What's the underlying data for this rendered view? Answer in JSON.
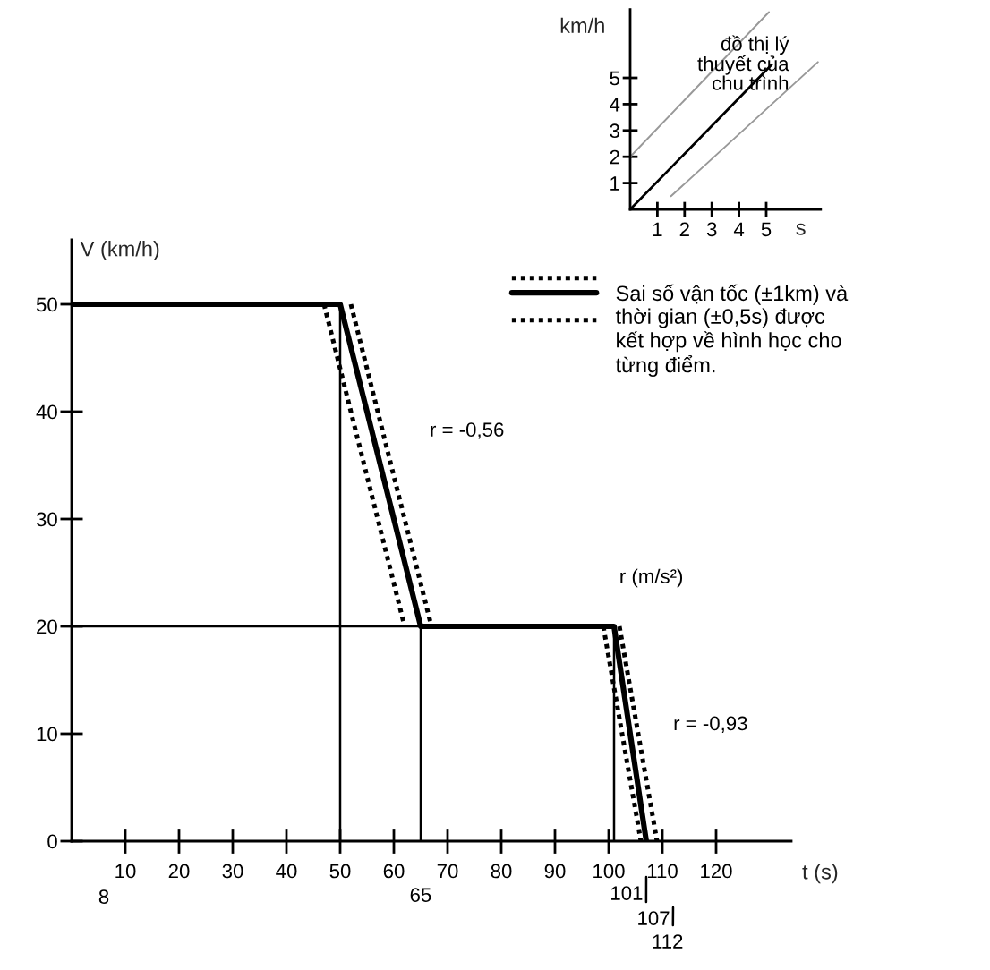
{
  "chart_data": [
    {
      "type": "line",
      "xlabel": "t (s)",
      "ylabel": "V (km/h)",
      "xlim": [
        0,
        134
      ],
      "ylim": [
        0,
        56
      ],
      "xticks": [
        10,
        20,
        30,
        40,
        50,
        60,
        70,
        80,
        90,
        100,
        110,
        120
      ],
      "yticks": [
        0,
        10,
        20,
        30,
        40,
        50
      ],
      "legend": "top right",
      "series": [
        {
          "color": "#000000",
          "x": [
            0,
            50,
            65,
            101,
            107
          ],
          "values": [
            50,
            50,
            20,
            20,
            0
          ]
        },
        {
          "name": "Sai số vận tốc (±1km) và\nthời gian (±0,5s) được\nkết hợp về hình học cho\ntừng điểm.",
          "color": "#000000",
          "line_style": "dotted",
          "x": [
            47,
            62
          ],
          "values": [
            50,
            20
          ]
        },
        {
          "color": "#000000",
          "line_style": "dotted",
          "x": [
            52,
            67
          ],
          "values": [
            50,
            20
          ]
        },
        {
          "color": "#000000",
          "line_style": "dotted",
          "x": [
            99,
            106
          ],
          "values": [
            20,
            0
          ]
        },
        {
          "color": "#000000",
          "line_style": "dotted",
          "x": [
            102,
            109
          ],
          "values": [
            20,
            0
          ]
        }
      ],
      "ref_lines": [
        {
          "axis": "x",
          "value": 50
        },
        {
          "axis": "x",
          "value": 65
        },
        {
          "axis": "x",
          "value": 101
        },
        {
          "axis": "y",
          "value": 20
        }
      ],
      "annotations": [
        "r = -0,56",
        "r (m/s²)",
        "r = -0,93",
        "8",
        "65",
        "101",
        "107",
        "112"
      ]
    },
    {
      "type": "line",
      "xlabel": "s",
      "ylabel": "km/h",
      "xlim": [
        0,
        7
      ],
      "ylim": [
        0,
        7.6
      ],
      "xticks": [
        1,
        2,
        3,
        4,
        5
      ],
      "yticks": [
        1,
        2,
        3,
        4,
        5
      ],
      "series": [
        {
          "name": "đồ thị lý\nthuyết của\nchu trình",
          "color": "#000000",
          "x": [
            0,
            5.2
          ],
          "values": [
            0,
            5.5
          ]
        },
        {
          "color": "#999999",
          "x": [
            0,
            5.1
          ],
          "values": [
            2,
            7.5
          ]
        },
        {
          "color": "#999999",
          "x": [
            1.5,
            6.9
          ],
          "values": [
            0.5,
            5.6
          ]
        }
      ]
    }
  ]
}
